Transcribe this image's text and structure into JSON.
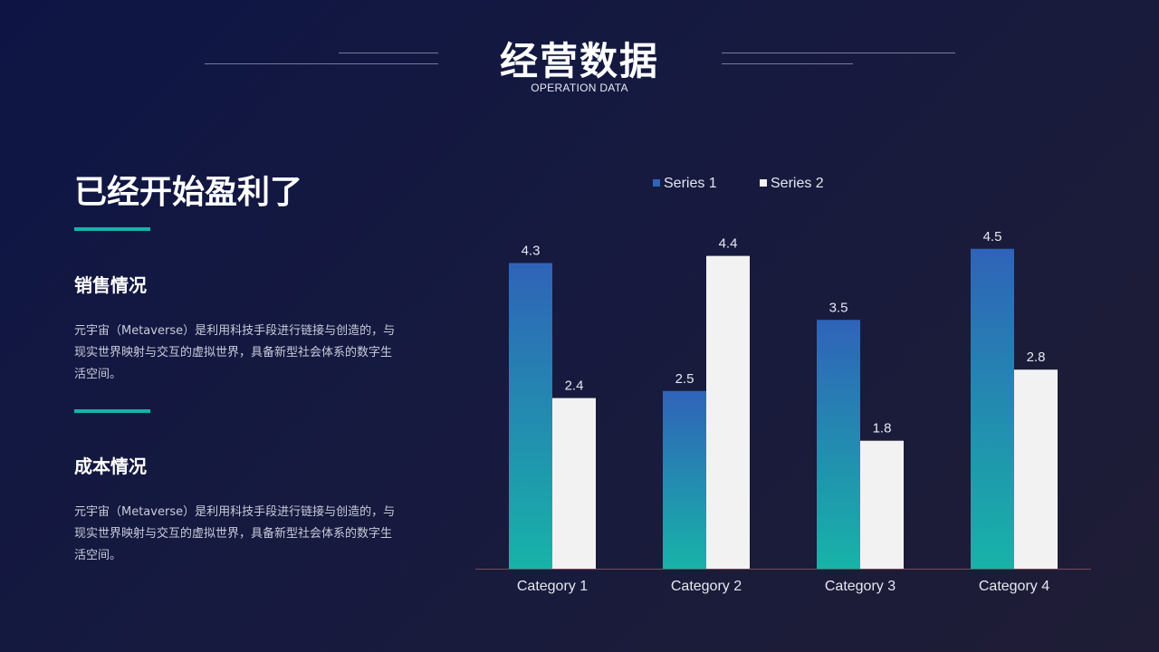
{
  "header": {
    "title": "经营数据",
    "subtitle": "OPERATION DATA"
  },
  "left": {
    "heading": "已经开始盈利了",
    "sections": [
      {
        "title": "销售情况",
        "text": "元宇宙（Metaverse）是利用科技手段进行链接与创造的，与现实世界映射与交互的虚拟世界，具备新型社会体系的数字生活空间。"
      },
      {
        "title": "成本情况",
        "text": "元宇宙（Metaverse）是利用科技手段进行链接与创造的，与现实世界映射与交互的虚拟世界，具备新型社会体系的数字生活空间。"
      }
    ]
  },
  "colors": {
    "accent": "#17b3a8",
    "series1_top": "#2f63b8",
    "series1_bottom": "#17b3a8",
    "series2": "#f2f2f2",
    "axis": "#7a4a5a"
  },
  "chart_data": {
    "type": "bar",
    "categories": [
      "Category 1",
      "Category 2",
      "Category 3",
      "Category 4"
    ],
    "series": [
      {
        "name": "Series 1",
        "values": [
          4.3,
          2.5,
          3.5,
          4.5
        ]
      },
      {
        "name": "Series 2",
        "values": [
          2.4,
          4.4,
          1.8,
          2.8
        ]
      }
    ],
    "legend_position": "top",
    "ylim": [
      0,
      5
    ],
    "grid": false,
    "data_labels": true
  }
}
